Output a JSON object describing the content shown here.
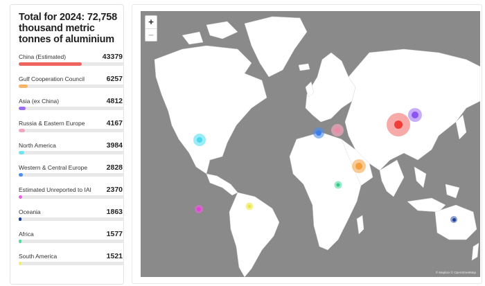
{
  "title": "Total for 2024: 72,758 thousand metric tonnes of aluminium",
  "regions": [
    {
      "label": "China (Estimated)",
      "value": 43379,
      "color": "#f0645f"
    },
    {
      "label": "Gulf Cooperation Council",
      "value": 6257,
      "color": "#f7b466"
    },
    {
      "label": "Asia (ex China)",
      "value": 4812,
      "color": "#9b6cf5"
    },
    {
      "label": "Russia & Eastern Europe",
      "value": 4167,
      "color": "#f3a7bd"
    },
    {
      "label": "North America",
      "value": 3984,
      "color": "#6ee6f2"
    },
    {
      "label": "Western & Central Europe",
      "value": 2828,
      "color": "#4a8ef2"
    },
    {
      "label": "Estimated Unreported to IAI",
      "value": 2370,
      "color": "#ee5fe4"
    },
    {
      "label": "Oceania",
      "value": 1863,
      "color": "#1f3f9e"
    },
    {
      "label": "Africa",
      "value": 1577,
      "color": "#54dca0"
    },
    {
      "label": "South America",
      "value": 1521,
      "color": "#f1ef72"
    }
  ],
  "map": {
    "zoom_in": "+",
    "zoom_out": "−",
    "attribution": "© Mapbox © OpenStreetMap",
    "land_color": "#ffffff",
    "sea_color": "#8a8a8a"
  }
}
